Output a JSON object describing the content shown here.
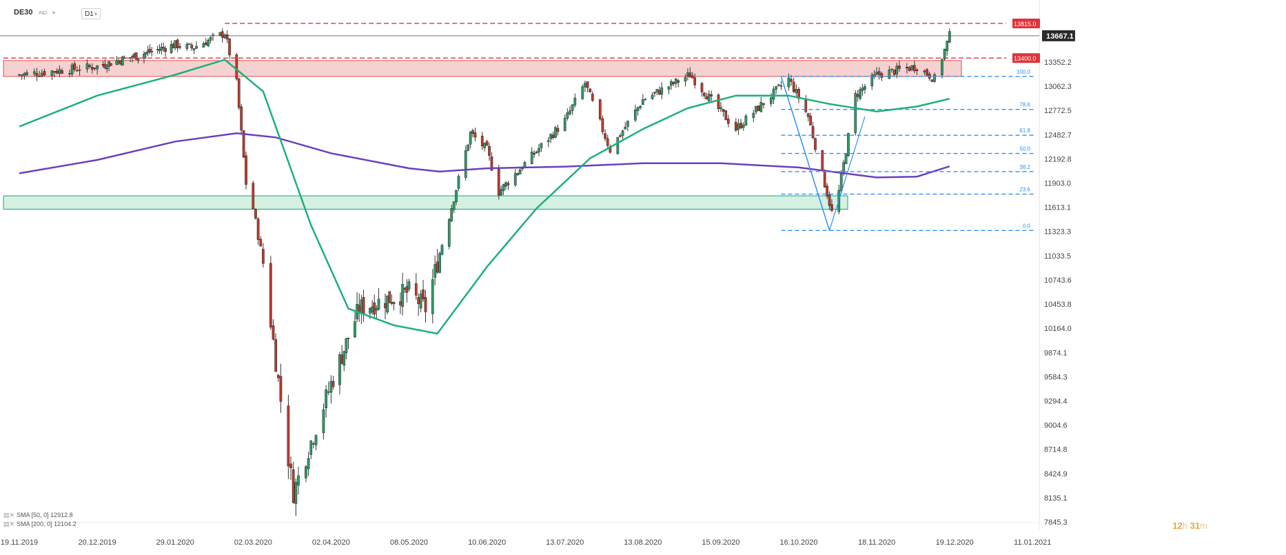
{
  "header": {
    "symbol": "DE30",
    "instrument_type": "IND",
    "timeframe": "D1"
  },
  "colors": {
    "bull": "#2e9c6a",
    "bear": "#c0392b",
    "sma50": "#1ab07a",
    "sma200": "#6a3fbf",
    "resistance": "#e0323a",
    "fib": "#2f8ff0",
    "zone_red": "#f5c9c9",
    "zone_green": "#cdeedd"
  },
  "legend": {
    "sma50": "SMA [50, 0] 12912.8",
    "sma200": "SMA [200, 0] 12104.2"
  },
  "countdown": {
    "hours": "12",
    "h_unit": "h",
    "minutes": "31",
    "m_unit": "m"
  },
  "chart_data": {
    "type": "candlestick",
    "y_axis_labels": [
      "13352.2",
      "13062.3",
      "12772.5",
      "12482.7",
      "12192.8",
      "11903.0",
      "11613.1",
      "11323.3",
      "11033.5",
      "10743.6",
      "10453.8",
      "10164.0",
      "9874.1",
      "9584.3",
      "9294.4",
      "9004.6",
      "8714.8",
      "8424.9",
      "8135.1",
      "7845.3"
    ],
    "x_axis_labels": [
      "19.11.2019",
      "20.12.2019",
      "29.01.2020",
      "02.03.2020",
      "02.04.2020",
      "08.05.2020",
      "10.06.2020",
      "13.07.2020",
      "13.08.2020",
      "15.09.2020",
      "16.10.2020",
      "18.11.2020",
      "19.12.2020",
      "11.01.2021"
    ],
    "last_price": "13667.1",
    "resistance_levels": [
      "13815.0",
      "13400.0"
    ],
    "fibonacci": {
      "high": 13180,
      "low": 11335,
      "levels": [
        "100.0",
        "78.6",
        "61.8",
        "50.0",
        "38.2",
        "23.6",
        "0.0"
      ]
    },
    "zones": [
      {
        "kind": "resistance",
        "from": 13180,
        "to": 13370
      },
      {
        "kind": "support",
        "from": 11590,
        "to": 11750
      }
    ],
    "key_points": [
      {
        "date": "19.11.2019",
        "close": 13200
      },
      {
        "date": "20.12.2019",
        "close": 13300
      },
      {
        "date": "29.01.2020",
        "close": 13560
      },
      {
        "date": "05.02.2020",
        "close": 13520
      },
      {
        "date": "19.02.2020",
        "close": 13700
      },
      {
        "date": "24.02.2020",
        "close": 13100
      },
      {
        "date": "28.02.2020",
        "close": 11900
      },
      {
        "date": "02.03.2020",
        "close": 11600
      },
      {
        "date": "06.03.2020",
        "close": 10950
      },
      {
        "date": "16.03.2020",
        "close": 8600
      },
      {
        "date": "18.03.2020",
        "close": 8200
      },
      {
        "date": "02.04.2020",
        "close": 9500
      },
      {
        "date": "15.04.2020",
        "close": 10400
      },
      {
        "date": "08.05.2020",
        "close": 10600
      },
      {
        "date": "15.05.2020",
        "close": 10400
      },
      {
        "date": "03.06.2020",
        "close": 12500
      },
      {
        "date": "10.06.2020",
        "close": 12300
      },
      {
        "date": "15.06.2020",
        "close": 11800
      },
      {
        "date": "13.07.2020",
        "close": 12650
      },
      {
        "date": "21.07.2020",
        "close": 13100
      },
      {
        "date": "31.07.2020",
        "close": 12300
      },
      {
        "date": "13.08.2020",
        "close": 12900
      },
      {
        "date": "02.09.2020",
        "close": 13200
      },
      {
        "date": "21.09.2020",
        "close": 12550
      },
      {
        "date": "12.10.2020",
        "close": 13150
      },
      {
        "date": "20.10.2020",
        "close": 12700
      },
      {
        "date": "30.10.2020",
        "close": 11550
      },
      {
        "date": "02.11.2020",
        "close": 11800
      },
      {
        "date": "09.11.2020",
        "close": 12950
      },
      {
        "date": "18.11.2020",
        "close": 13200
      },
      {
        "date": "04.12.2020",
        "close": 13300
      },
      {
        "date": "11.12.2020",
        "close": 13150
      },
      {
        "date": "17.12.2020",
        "close": 13667.1
      }
    ],
    "sma50_path": [
      [
        "19.11.2019",
        12580
      ],
      [
        "20.12.2019",
        12950
      ],
      [
        "29.01.2020",
        13200
      ],
      [
        "19.02.2020",
        13380
      ],
      [
        "06.03.2020",
        13000
      ],
      [
        "25.03.2020",
        11400
      ],
      [
        "10.04.2020",
        10400
      ],
      [
        "01.05.2020",
        10200
      ],
      [
        "20.05.2020",
        10100
      ],
      [
        "10.06.2020",
        10900
      ],
      [
        "01.07.2020",
        11600
      ],
      [
        "23.07.2020",
        12200
      ],
      [
        "13.08.2020",
        12550
      ],
      [
        "01.09.2020",
        12800
      ],
      [
        "21.09.2020",
        12950
      ],
      [
        "12.10.2020",
        12950
      ],
      [
        "29.10.2020",
        12850
      ],
      [
        "18.11.2020",
        12760
      ],
      [
        "04.12.2020",
        12820
      ],
      [
        "17.12.2020",
        12912.8
      ]
    ],
    "sma200_path": [
      [
        "19.11.2019",
        12020
      ],
      [
        "20.12.2019",
        12180
      ],
      [
        "29.01.2020",
        12400
      ],
      [
        "24.02.2020",
        12500
      ],
      [
        "11.03.2020",
        12450
      ],
      [
        "02.04.2020",
        12260
      ],
      [
        "08.05.2020",
        12080
      ],
      [
        "21.05.2020",
        12040
      ],
      [
        "10.06.2020",
        12080
      ],
      [
        "13.07.2020",
        12100
      ],
      [
        "13.08.2020",
        12140
      ],
      [
        "15.09.2020",
        12140
      ],
      [
        "16.10.2020",
        12090
      ],
      [
        "18.11.2020",
        11970
      ],
      [
        "04.12.2020",
        11980
      ],
      [
        "17.12.2020",
        12104.2
      ]
    ]
  }
}
